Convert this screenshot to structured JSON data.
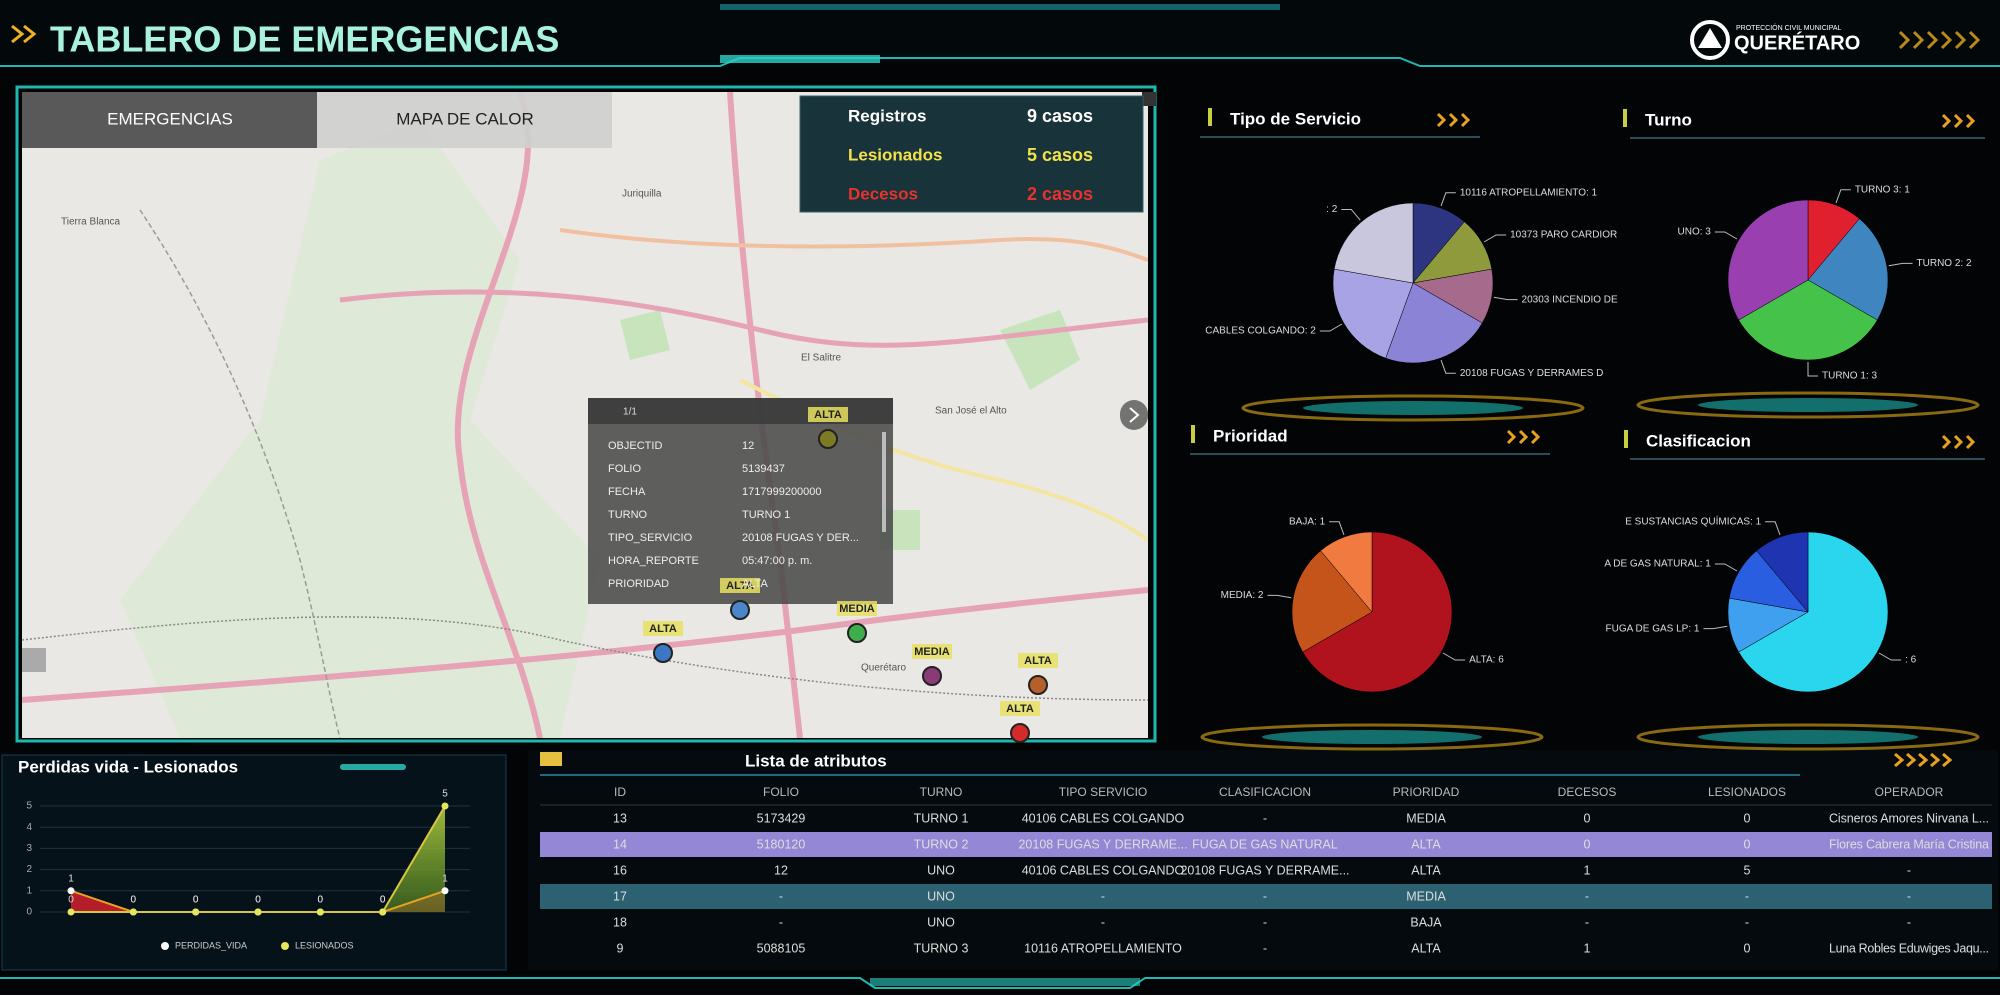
{
  "header": {
    "title": "TABLERO DE EMERGENCIAS",
    "logo_top": "PROTECCIÓN CIVIL MUNICIPAL",
    "logo_name": "QUERÉTARO"
  },
  "map": {
    "tabs": [
      "EMERGENCIAS",
      "MAPA DE CALOR"
    ],
    "stats": [
      {
        "label": "Registros",
        "value": "9 casos",
        "color": "#ffffff"
      },
      {
        "label": "Lesionados",
        "value": "5 casos",
        "color": "#f2e14a"
      },
      {
        "label": "Decesos",
        "value": "2 casos",
        "color": "#e8322e"
      }
    ],
    "places": [
      "Juriquilla",
      "El Salitre",
      "San José el Alto",
      "Tierra Blanca",
      "Querétaro"
    ],
    "markers": [
      {
        "label": "ALTA",
        "color": "#7c7a22"
      },
      {
        "label": "ALTA",
        "color": "#4a86c8"
      },
      {
        "label": "MEDIA",
        "color": "#3fae4a"
      },
      {
        "label": "ALTA",
        "color": "#3b78c4"
      },
      {
        "label": "MEDIA",
        "color": "#8b3a78"
      },
      {
        "label": "ALTA",
        "color": "#b5602a"
      },
      {
        "label": "ALTA",
        "color": "#d42a2a"
      }
    ],
    "popup": {
      "pager": "1/1",
      "fields": [
        [
          "OBJECTID",
          "12"
        ],
        [
          "FOLIO",
          "5139437"
        ],
        [
          "FECHA",
          "1717999200000"
        ],
        [
          "TURNO",
          "TURNO 1"
        ],
        [
          "TIPO_SERVICIO",
          "20108 FUGAS Y DER..."
        ],
        [
          "HORA_REPORTE",
          "05:47:00 p. m."
        ],
        [
          "PRIORIDAD",
          "ALTA"
        ]
      ]
    }
  },
  "pies": [
    {
      "type": "pie",
      "title": "Tipo de Servicio",
      "values": [
        1,
        1,
        1,
        2,
        2,
        2
      ],
      "value_labels": [
        "10116 ATROPELLAMIENTO: 1",
        "10373 PARO CARDIOR",
        "20303 INCENDIO DE",
        "20108 FUGAS Y DERRAMES D",
        "CABLES COLGANDO: 2",
        ": 2"
      ],
      "colors": [
        "#2e3580",
        "#8f9a3c",
        "#a56a8c",
        "#8b84d6",
        "#a7a3e4",
        "#c9c7de"
      ]
    },
    {
      "type": "pie",
      "title": "Turno",
      "values": [
        1,
        2,
        3,
        3
      ],
      "value_labels": [
        "TURNO 3: 1",
        "TURNO 2: 2",
        "TURNO 1: 3",
        "UNO: 3"
      ],
      "colors": [
        "#e0202e",
        "#3f86c0",
        "#45c24a",
        "#9a3fb0"
      ]
    },
    {
      "type": "pie",
      "title": "Prioridad",
      "values": [
        6,
        2,
        1
      ],
      "value_labels": [
        "ALTA: 6",
        "MEDIA: 2",
        "BAJA: 1"
      ],
      "colors": [
        "#b0121e",
        "#c4541a",
        "#f07a40"
      ]
    },
    {
      "type": "pie",
      "title": "Clasificacion",
      "values": [
        6,
        1,
        1,
        1
      ],
      "value_labels": [
        ": 6",
        "FUGA DE GAS LP: 1",
        "A DE GAS NATURAL: 1",
        "E SUSTANCIAS QUÍMICAS: 1"
      ],
      "colors": [
        "#2ad6ee",
        "#3fa0f0",
        "#2a5ee0",
        "#1e34b0"
      ]
    }
  ],
  "loss_chart": {
    "type": "line",
    "title": "Perdidas vida - Lesionados",
    "series": [
      {
        "name": "PERDIDAS_VIDA",
        "color": "#e0202e",
        "values": [
          1,
          0,
          0,
          0,
          0,
          0,
          1
        ]
      },
      {
        "name": "LESIONADOS",
        "color": "#e6e65a",
        "values": [
          0,
          0,
          0,
          0,
          0,
          0,
          5
        ]
      }
    ],
    "ylim": [
      0,
      5
    ],
    "yticks": [
      0,
      1,
      2,
      3,
      4,
      5
    ],
    "grid": true
  },
  "table": {
    "title": "Lista de atributos",
    "columns": [
      "ID",
      "FOLIO",
      "TURNO",
      "TIPO SERVICIO",
      "CLASIFICACION",
      "PRIORIDAD",
      "DECESOS",
      "LESIONADOS",
      "OPERADOR"
    ],
    "rows": [
      [
        "13",
        "5173429",
        "TURNO 1",
        "40106 CABLES COLGANDO",
        "-",
        "MEDIA",
        "0",
        "0",
        "Cisneros Amores Nirvana L..."
      ],
      [
        "14",
        "5180120",
        "TURNO 2",
        "20108 FUGAS Y DERRAME...",
        "FUGA DE GAS NATURAL",
        "ALTA",
        "0",
        "0",
        "Flores Cabrera María Cristina"
      ],
      [
        "16",
        "12",
        "UNO",
        "40106 CABLES COLGANDO",
        "20108 FUGAS Y DERRAME...",
        "ALTA",
        "1",
        "5",
        "-"
      ],
      [
        "17",
        "-",
        "UNO",
        "-",
        "-",
        "MEDIA",
        "-",
        "-",
        "-"
      ],
      [
        "18",
        "-",
        "UNO",
        "-",
        "-",
        "BAJA",
        "-",
        "-",
        "-"
      ],
      [
        "9",
        "5088105",
        "TURNO 3",
        "10116 ATROPELLAMIENTO",
        "-",
        "ALTA",
        "1",
        "0",
        "Luna Robles Eduwiges Jaqu..."
      ]
    ],
    "highlighted_rows": [
      {
        "row": 1,
        "color": "#9487d6"
      },
      {
        "row": 3,
        "color": "#2b6170"
      }
    ]
  }
}
